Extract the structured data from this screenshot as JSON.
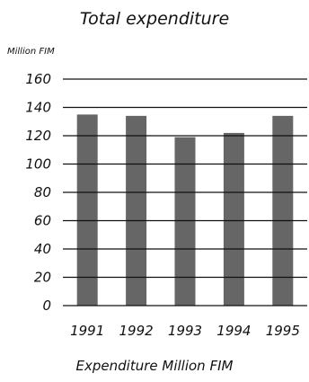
{
  "chart_data": {
    "type": "bar",
    "title": "Total expenditure",
    "ylabel": "Million FIM",
    "xlabel": "",
    "caption": "Expenditure Million FIM",
    "categories": [
      "1991",
      "1992",
      "1993",
      "1994",
      "1995"
    ],
    "values": [
      135,
      134,
      119,
      122,
      134
    ],
    "ylim": [
      0,
      160
    ],
    "yticks": [
      0,
      20,
      40,
      60,
      80,
      100,
      120,
      140,
      160
    ],
    "grid": true,
    "legend": "none",
    "colors": {
      "bar": "#666666",
      "grid": "#111111"
    }
  }
}
